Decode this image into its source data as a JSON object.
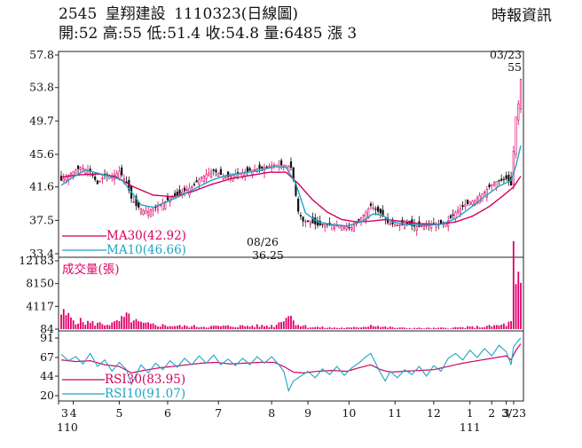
{
  "header": {
    "code": "2545",
    "name": "皇翔建設",
    "date": "1110323",
    "period": "(日線圖)",
    "source": "時報資訊",
    "open": "開:52",
    "high": "高:55",
    "low": "低:51.4",
    "close": "收:54.8",
    "volume": "量:6485",
    "change": "漲 3"
  },
  "colors": {
    "up": "#e0006a",
    "down": "#111111",
    "ma30": "#d4005e",
    "ma10": "#1fa3c4",
    "volume": "#e0006a",
    "rsi30": "#d4005e",
    "rsi10": "#1fa3c4"
  },
  "chart_data": [
    {
      "type": "candlestick",
      "title": "2545 皇翔建設 1110323(日線圖)",
      "yticks": [
        57.8,
        53.8,
        49.7,
        45.6,
        41.6,
        37.5,
        33.4
      ],
      "ylim": [
        33.4,
        57.8
      ],
      "x_months": [
        "3",
        "4",
        "5",
        "6",
        "7",
        "8",
        "9",
        "10",
        "11",
        "12",
        "1",
        "2",
        "3",
        "3/23"
      ],
      "x_years": [
        "110",
        "111"
      ],
      "legend": [
        {
          "name": "MA30(42.92)",
          "color_key": "ma30"
        },
        {
          "name": "MA10(46.66)",
          "color_key": "ma10"
        }
      ],
      "annotations": {
        "peak_date": "03/23",
        "peak_value": "55",
        "low_date": "08/26",
        "low_value": "36.25"
      },
      "close_anchors": [
        [
          0,
          42.4
        ],
        [
          4,
          43.3
        ],
        [
          8,
          44.0
        ],
        [
          12,
          43.5
        ],
        [
          15,
          42.0
        ],
        [
          18,
          43.0
        ],
        [
          21,
          42.9
        ],
        [
          24,
          43.5
        ],
        [
          27,
          42.2
        ],
        [
          29,
          40.2
        ],
        [
          31,
          39.3
        ],
        [
          34,
          38.7
        ],
        [
          36,
          38.6
        ],
        [
          40,
          39.2
        ],
        [
          44,
          40.0
        ],
        [
          49,
          40.8
        ],
        [
          54,
          41.6
        ],
        [
          58,
          42.8
        ],
        [
          63,
          43.6
        ],
        [
          68,
          42.8
        ],
        [
          73,
          43.2
        ],
        [
          78,
          43.6
        ],
        [
          83,
          43.9
        ],
        [
          88,
          44.3
        ],
        [
          92,
          44.3
        ],
        [
          95,
          44.0
        ],
        [
          96,
          42.5
        ],
        [
          98,
          38.6
        ],
        [
          100,
          37.4
        ],
        [
          103,
          37.3
        ],
        [
          106,
          36.9
        ],
        [
          109,
          37.0
        ],
        [
          112,
          36.9
        ],
        [
          116,
          36.8
        ],
        [
          120,
          36.6
        ],
        [
          123,
          37.5
        ],
        [
          126,
          38.5
        ],
        [
          128,
          39.3
        ],
        [
          130,
          38.8
        ],
        [
          132,
          38.4
        ],
        [
          135,
          37.2
        ],
        [
          139,
          36.9
        ],
        [
          143,
          37.0
        ],
        [
          147,
          36.7
        ],
        [
          150,
          36.8
        ],
        [
          155,
          37.0
        ],
        [
          159,
          37.1
        ],
        [
          163,
          38.5
        ],
        [
          167,
          39.4
        ],
        [
          171,
          40.0
        ],
        [
          175,
          41.0
        ],
        [
          179,
          42.2
        ],
        [
          182,
          42.4
        ],
        [
          184,
          42.6
        ],
        [
          186,
          41.8
        ],
        [
          187,
          46.0
        ],
        [
          188,
          50.2
        ],
        [
          189,
          51.8
        ],
        [
          190,
          54.8
        ]
      ],
      "ma10_anchors": [
        [
          0,
          41.8
        ],
        [
          5,
          42.8
        ],
        [
          10,
          43.7
        ],
        [
          15,
          43.3
        ],
        [
          20,
          42.9
        ],
        [
          25,
          42.5
        ],
        [
          29,
          41.0
        ],
        [
          33,
          39.4
        ],
        [
          38,
          39.1
        ],
        [
          44,
          39.8
        ],
        [
          50,
          40.6
        ],
        [
          56,
          41.5
        ],
        [
          62,
          42.4
        ],
        [
          68,
          43.0
        ],
        [
          75,
          43.3
        ],
        [
          82,
          43.6
        ],
        [
          88,
          44.1
        ],
        [
          93,
          44.0
        ],
        [
          97,
          42.0
        ],
        [
          101,
          38.4
        ],
        [
          106,
          37.3
        ],
        [
          112,
          37.0
        ],
        [
          118,
          36.8
        ],
        [
          124,
          37.3
        ],
        [
          129,
          38.3
        ],
        [
          133,
          38.1
        ],
        [
          137,
          37.3
        ],
        [
          143,
          37.0
        ],
        [
          150,
          36.9
        ],
        [
          157,
          37.0
        ],
        [
          163,
          37.7
        ],
        [
          169,
          39.0
        ],
        [
          175,
          40.4
        ],
        [
          181,
          41.7
        ],
        [
          186,
          42.4
        ],
        [
          188,
          44.2
        ],
        [
          190,
          46.66
        ]
      ],
      "ma30_anchors": [
        [
          0,
          42.8
        ],
        [
          8,
          43.1
        ],
        [
          15,
          43.2
        ],
        [
          22,
          42.9
        ],
        [
          30,
          41.6
        ],
        [
          38,
          40.6
        ],
        [
          46,
          40.4
        ],
        [
          54,
          41.0
        ],
        [
          62,
          41.9
        ],
        [
          70,
          42.6
        ],
        [
          78,
          43.0
        ],
        [
          86,
          43.4
        ],
        [
          93,
          43.4
        ],
        [
          98,
          42.0
        ],
        [
          104,
          40.0
        ],
        [
          110,
          38.5
        ],
        [
          116,
          37.6
        ],
        [
          122,
          37.3
        ],
        [
          128,
          37.4
        ],
        [
          134,
          37.6
        ],
        [
          140,
          37.4
        ],
        [
          148,
          37.1
        ],
        [
          156,
          37.0
        ],
        [
          163,
          37.3
        ],
        [
          170,
          38.0
        ],
        [
          177,
          39.2
        ],
        [
          183,
          40.6
        ],
        [
          187,
          41.6
        ],
        [
          190,
          42.92
        ]
      ]
    },
    {
      "type": "bar",
      "title": "成交量(張)",
      "yticks": [
        12183,
        8150,
        4117,
        84
      ],
      "ylim": [
        84,
        12183
      ],
      "volume_anchors": [
        [
          0,
          2900
        ],
        [
          3,
          2300
        ],
        [
          6,
          1600
        ],
        [
          10,
          1300
        ],
        [
          14,
          1100
        ],
        [
          18,
          1000
        ],
        [
          22,
          1100
        ],
        [
          26,
          2000
        ],
        [
          28,
          2300
        ],
        [
          30,
          1500
        ],
        [
          34,
          1000
        ],
        [
          40,
          800
        ],
        [
          50,
          600
        ],
        [
          60,
          550
        ],
        [
          70,
          600
        ],
        [
          80,
          650
        ],
        [
          88,
          700
        ],
        [
          90,
          1200
        ],
        [
          92,
          2300
        ],
        [
          94,
          2600
        ],
        [
          96,
          1800
        ],
        [
          98,
          900
        ],
        [
          102,
          500
        ],
        [
          110,
          350
        ],
        [
          120,
          300
        ],
        [
          126,
          600
        ],
        [
          129,
          900
        ],
        [
          132,
          500
        ],
        [
          140,
          300
        ],
        [
          155,
          250
        ],
        [
          163,
          350
        ],
        [
          170,
          450
        ],
        [
          176,
          550
        ],
        [
          180,
          700
        ],
        [
          184,
          900
        ],
        [
          186,
          1300
        ],
        [
          187,
          12183
        ],
        [
          188,
          6500
        ],
        [
          189,
          8100
        ],
        [
          190,
          6485
        ]
      ]
    },
    {
      "type": "line",
      "title": "RSI",
      "yticks": [
        91,
        67,
        44,
        20
      ],
      "ylim": [
        20,
        91
      ],
      "legend": [
        {
          "name": "RSI30(83.95)",
          "color_key": "rsi30"
        },
        {
          "name": "RSI10(91.07)",
          "color_key": "rsi10"
        }
      ],
      "rsi10_anchors": [
        [
          0,
          71
        ],
        [
          3,
          63
        ],
        [
          6,
          68
        ],
        [
          9,
          59
        ],
        [
          12,
          72
        ],
        [
          15,
          56
        ],
        [
          18,
          64
        ],
        [
          21,
          50
        ],
        [
          24,
          61
        ],
        [
          27,
          52
        ],
        [
          29,
          34
        ],
        [
          31,
          46
        ],
        [
          33,
          58
        ],
        [
          36,
          48
        ],
        [
          39,
          60
        ],
        [
          42,
          52
        ],
        [
          45,
          63
        ],
        [
          48,
          55
        ],
        [
          51,
          66
        ],
        [
          54,
          58
        ],
        [
          57,
          69
        ],
        [
          60,
          60
        ],
        [
          63,
          70
        ],
        [
          66,
          58
        ],
        [
          69,
          65
        ],
        [
          72,
          57
        ],
        [
          75,
          66
        ],
        [
          78,
          58
        ],
        [
          81,
          68
        ],
        [
          84,
          60
        ],
        [
          87,
          68
        ],
        [
          90,
          58
        ],
        [
          92,
          50
        ],
        [
          94,
          26
        ],
        [
          96,
          38
        ],
        [
          99,
          44
        ],
        [
          102,
          50
        ],
        [
          105,
          42
        ],
        [
          108,
          53
        ],
        [
          111,
          46
        ],
        [
          114,
          56
        ],
        [
          117,
          45
        ],
        [
          120,
          54
        ],
        [
          123,
          60
        ],
        [
          126,
          68
        ],
        [
          128,
          72
        ],
        [
          130,
          60
        ],
        [
          132,
          48
        ],
        [
          134,
          38
        ],
        [
          136,
          50
        ],
        [
          139,
          42
        ],
        [
          142,
          52
        ],
        [
          145,
          46
        ],
        [
          148,
          56
        ],
        [
          151,
          44
        ],
        [
          154,
          57
        ],
        [
          157,
          50
        ],
        [
          160,
          66
        ],
        [
          163,
          72
        ],
        [
          166,
          64
        ],
        [
          169,
          76
        ],
        [
          172,
          67
        ],
        [
          175,
          78
        ],
        [
          178,
          69
        ],
        [
          181,
          82
        ],
        [
          184,
          74
        ],
        [
          186,
          58
        ],
        [
          187,
          80
        ],
        [
          189,
          88
        ],
        [
          190,
          91.07
        ]
      ],
      "rsi30_anchors": [
        [
          0,
          64
        ],
        [
          6,
          62
        ],
        [
          12,
          63
        ],
        [
          18,
          58
        ],
        [
          24,
          56
        ],
        [
          29,
          48
        ],
        [
          34,
          51
        ],
        [
          40,
          54
        ],
        [
          46,
          56
        ],
        [
          52,
          58
        ],
        [
          58,
          60
        ],
        [
          64,
          61
        ],
        [
          70,
          59
        ],
        [
          76,
          60
        ],
        [
          82,
          61
        ],
        [
          88,
          61
        ],
        [
          92,
          56
        ],
        [
          96,
          49
        ],
        [
          100,
          48
        ],
        [
          106,
          50
        ],
        [
          112,
          51
        ],
        [
          118,
          50
        ],
        [
          124,
          55
        ],
        [
          128,
          58
        ],
        [
          132,
          52
        ],
        [
          136,
          49
        ],
        [
          142,
          50
        ],
        [
          148,
          51
        ],
        [
          154,
          52
        ],
        [
          160,
          56
        ],
        [
          166,
          60
        ],
        [
          172,
          63
        ],
        [
          178,
          66
        ],
        [
          184,
          69
        ],
        [
          186,
          64
        ],
        [
          188,
          76
        ],
        [
          190,
          83.95
        ]
      ]
    }
  ]
}
